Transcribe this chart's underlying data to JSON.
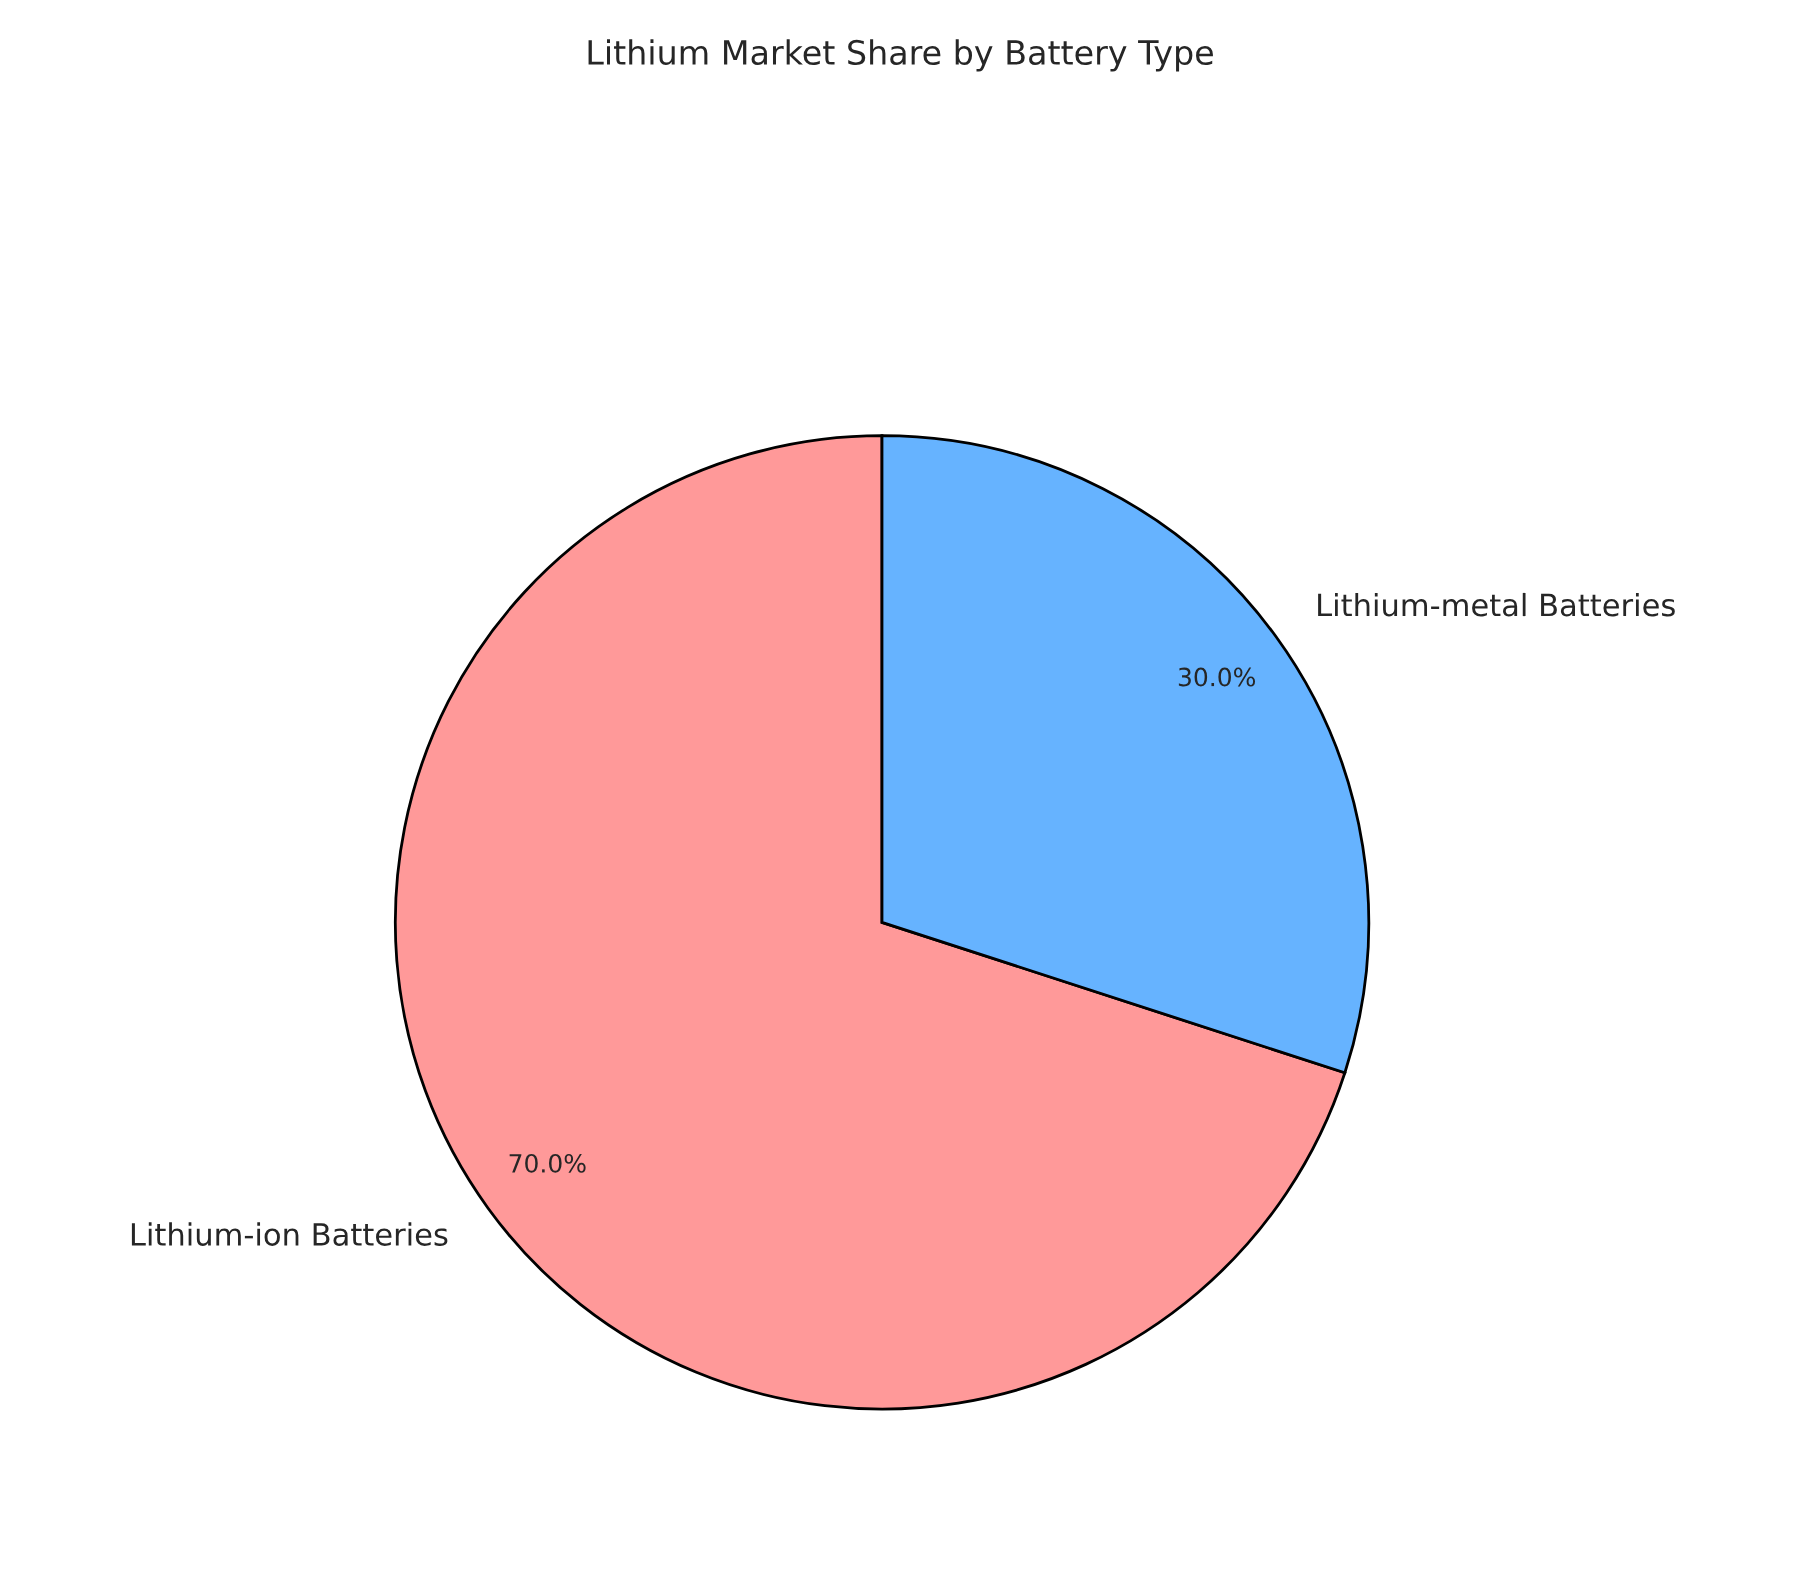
{
  "chart_data": {
    "type": "pie",
    "title": "Lithium Market Share by Battery Type",
    "categories": [
      "Lithium-ion Batteries",
      "Lithium-metal Batteries"
    ],
    "values": [
      70,
      30
    ],
    "colors": [
      "#ff9999",
      "#66b3ff"
    ],
    "value_labels": [
      "70.0%",
      "30.0%"
    ]
  }
}
